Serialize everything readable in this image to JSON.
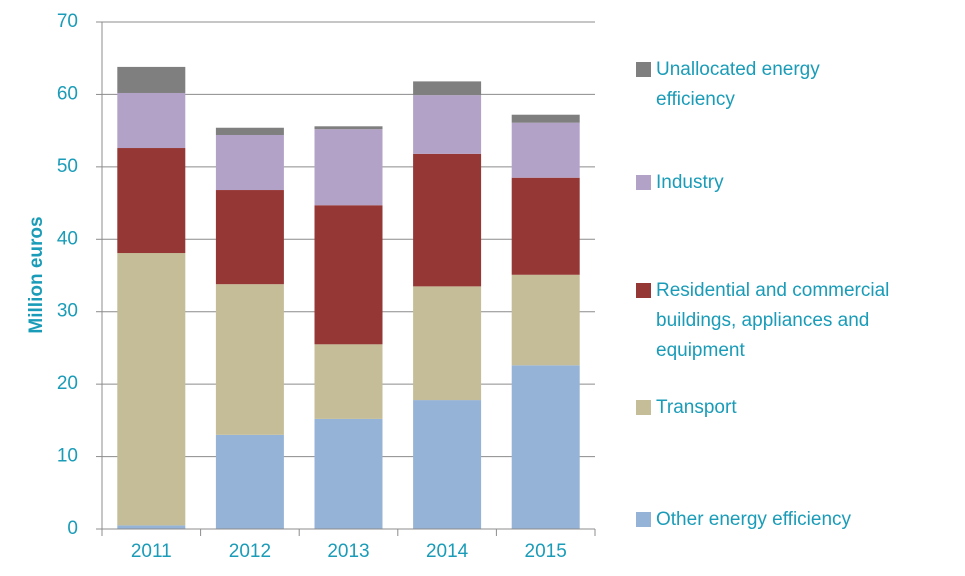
{
  "chart_data": {
    "type": "stacked_bar",
    "y_label": "Million euros",
    "categories": [
      "2011",
      "2012",
      "2013",
      "2014",
      "2015"
    ],
    "series": [
      {
        "name": "Other energy efficiency",
        "color": "#95b3d7",
        "values": [
          0.5,
          13.0,
          15.2,
          17.8,
          22.6
        ]
      },
      {
        "name": "Transport",
        "color": "#c4bd97",
        "values": [
          37.6,
          20.8,
          10.3,
          15.7,
          12.5
        ]
      },
      {
        "name": "Residential and commercial buildings, appliances and equipment",
        "color": "#953735",
        "values": [
          14.5,
          13.0,
          19.2,
          18.3,
          13.4
        ]
      },
      {
        "name": "Industry",
        "color": "#b3a2c7",
        "values": [
          7.6,
          7.6,
          10.5,
          8.1,
          7.6
        ]
      },
      {
        "name": "Unallocated energy efficiency",
        "color": "#7f7f7f",
        "values": [
          3.6,
          1.0,
          0.4,
          1.9,
          1.1
        ]
      }
    ],
    "ylim": [
      0,
      70
    ],
    "yticks": [
      0,
      10,
      20,
      30,
      40,
      50,
      60,
      70
    ],
    "grid": true
  }
}
